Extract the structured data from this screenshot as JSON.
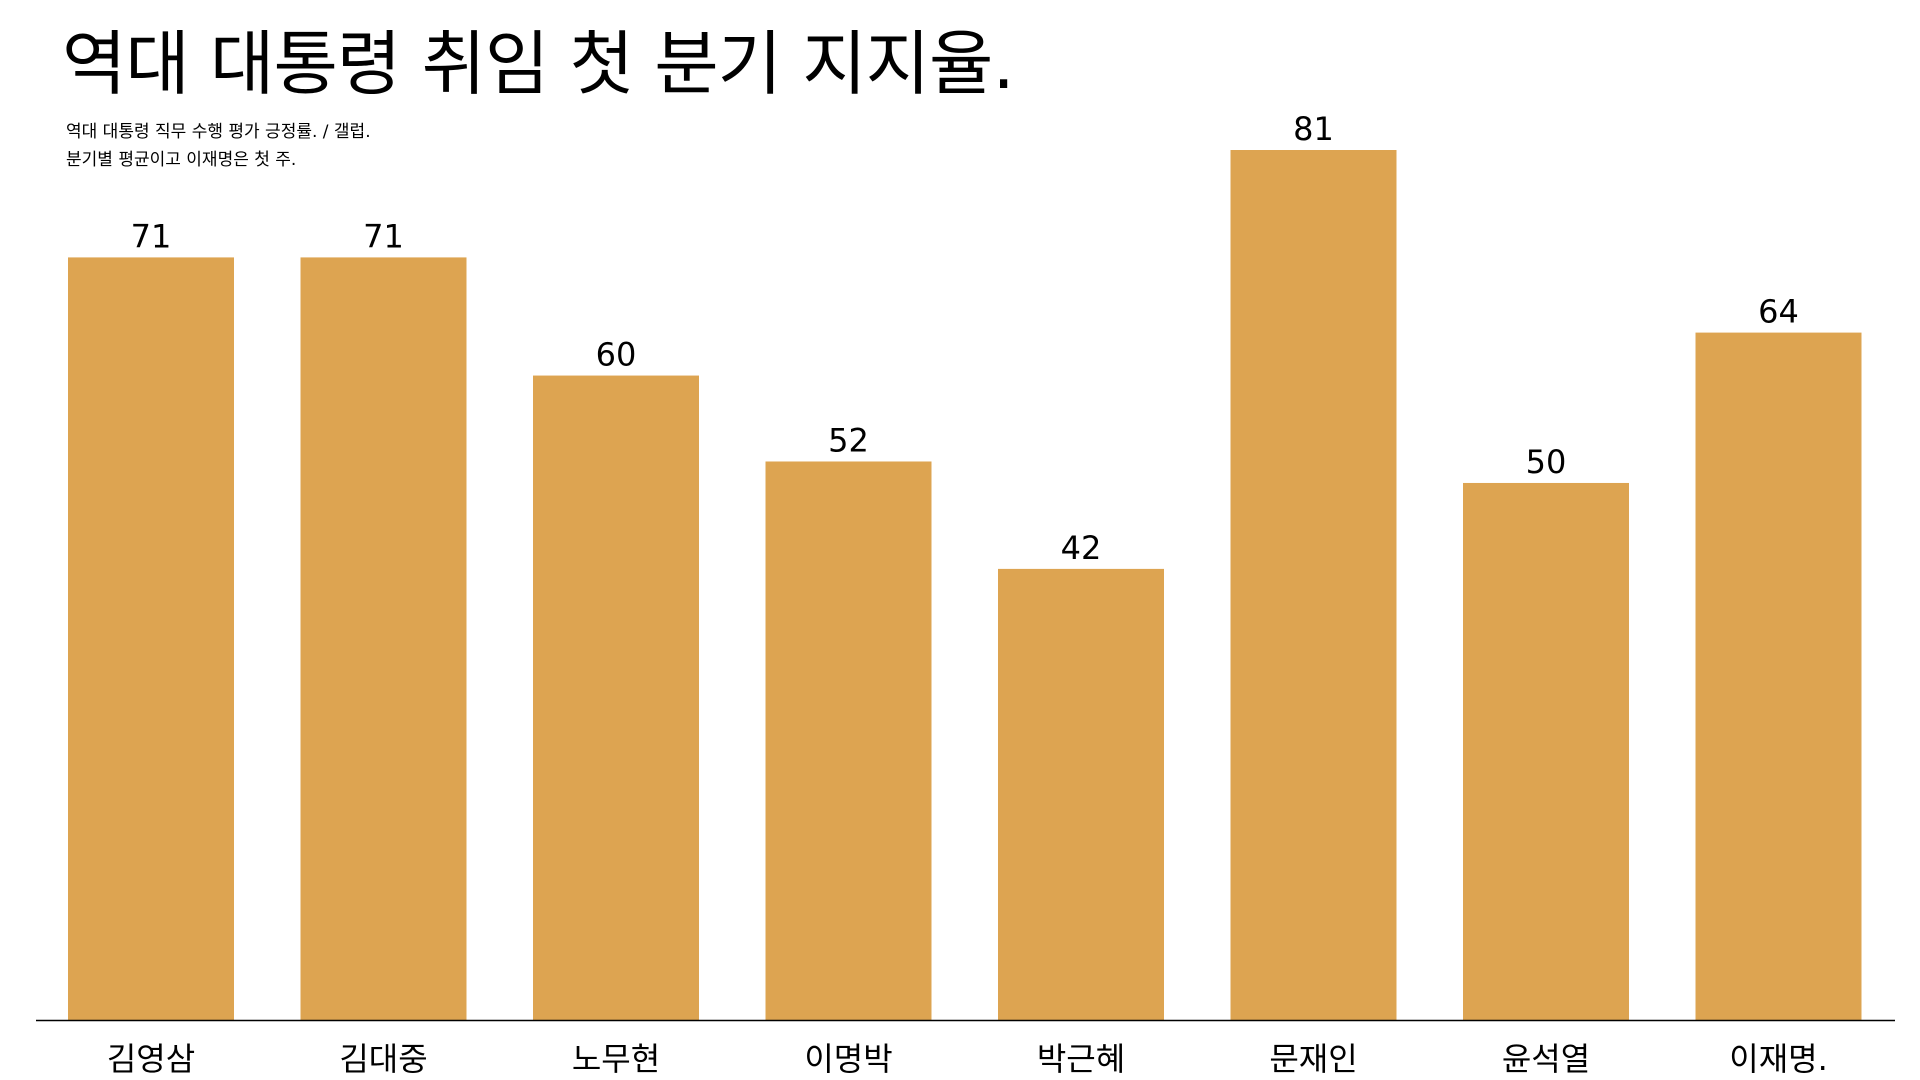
{
  "title": "역대 대통령 취임 첫 분기 지지율.",
  "subtitle_lines": [
    "역대 대통령 직무 수행 평가 긍정률. / 갤럽.",
    "분기별 평균이고 이재명은 첫 주."
  ],
  "colors": {
    "bar": "#DDA451",
    "axis": "#000000",
    "text": "#000000"
  },
  "chart_data": {
    "type": "bar",
    "title": "역대 대통령 취임 첫 분기 지지율.",
    "xlabel": "",
    "ylabel": "",
    "categories": [
      "김영삼",
      "김대중",
      "노무현",
      "이명박",
      "박근혜",
      "문재인",
      "윤석열",
      "이재명."
    ],
    "values": [
      71,
      71,
      60,
      52,
      42,
      81,
      50,
      64
    ],
    "ylim": [
      0,
      81
    ],
    "grid": false,
    "legend": "none",
    "data_labels": true
  }
}
